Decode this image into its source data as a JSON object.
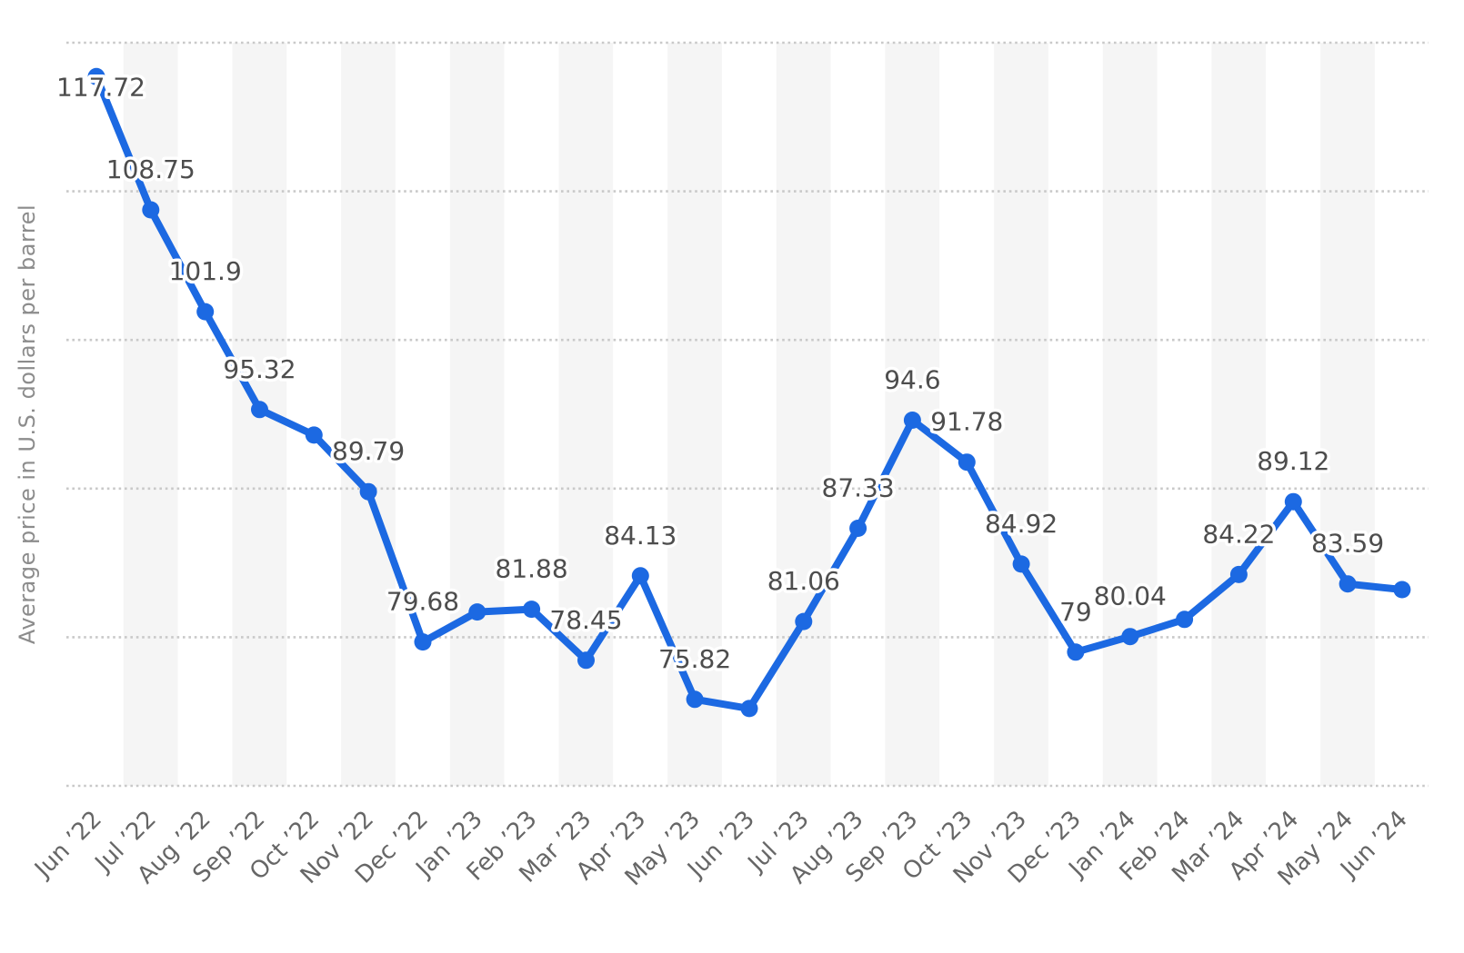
{
  "chart": {
    "y_axis_title": "Average price in U.S. dollars per barrel"
  },
  "chart_data": {
    "type": "line",
    "title": "",
    "xlabel": "",
    "ylabel": "Average price in U.S. dollars per barrel",
    "ylim": [
      70,
      120
    ],
    "grid_values": [
      70,
      80,
      90,
      100,
      110,
      120
    ],
    "grid": "horizontal dotted gridlines, no y tick labels, alternating vertical month bands",
    "legend_position": "none",
    "categories": [
      "Jun ’22",
      "Jul ’22",
      "Aug ’22",
      "Sep ’22",
      "Oct ’22",
      "Nov ’22",
      "Dec ’22",
      "Jan ’23",
      "Feb ’23",
      "Mar ’23",
      "Apr ’23",
      "May ’23",
      "Jun ’23",
      "Jul ’23",
      "Aug ’23",
      "Sep ’23",
      "Oct ’23",
      "Nov ’23",
      "Dec ’23",
      "Jan ’24",
      "Feb ’24",
      "Mar ’24",
      "Apr ’24",
      "May ’24",
      "Jun ’24"
    ],
    "series": [
      {
        "name": "Average price in U.S. dollars per barrel",
        "values": [
          117.72,
          108.75,
          101.9,
          95.32,
          93.6,
          89.79,
          79.68,
          81.7,
          81.88,
          78.45,
          84.13,
          75.82,
          75.2,
          81.06,
          87.33,
          94.6,
          91.78,
          84.92,
          79,
          80.04,
          81.2,
          84.22,
          89.12,
          83.59,
          83.2
        ],
        "point_labels": [
          "117.72",
          "108.75",
          "101.9",
          "95.32",
          "",
          "89.79",
          "79.68",
          "",
          "81.88",
          "78.45",
          "84.13",
          "75.82",
          "",
          "81.06",
          "87.33",
          "94.6",
          "91.78",
          "84.92",
          "79",
          "80.04",
          "",
          "84.22",
          "89.12",
          "83.59",
          ""
        ]
      }
    ],
    "note": "points with empty point_labels are unlabeled in the chart; their values are estimated from gridlines"
  },
  "style": {
    "series_color": "#1c69e2",
    "point_label_color": "#4d4d4d",
    "axis_label_color": "#666666",
    "y_title_color": "#8c8c8c",
    "gridline_color": "#c9c9c9",
    "band_color": "#f5f5f5",
    "background_color": "#ffffff"
  }
}
